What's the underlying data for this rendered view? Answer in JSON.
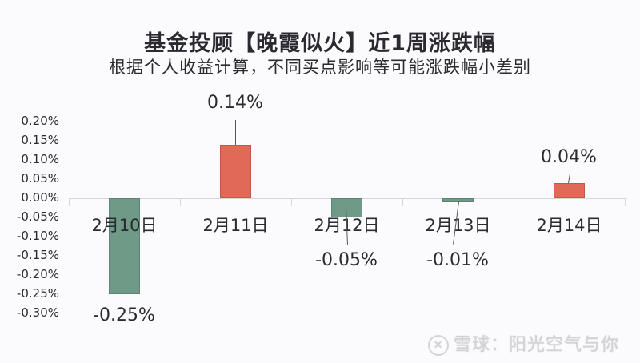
{
  "header": {
    "title": "基金投顾【晚霞似火】近1周涨跌幅",
    "subtitle": "根据个人收益计算，不同买点影响等可能涨跌幅小差别"
  },
  "watermark": {
    "icon": "snowball-logo-icon",
    "text": "雪球：阳光空气与你"
  },
  "colors": {
    "positive": "#e06a57",
    "negative": "#6e9a87"
  },
  "chart_data": {
    "type": "bar",
    "title": "基金投顾【晚霞似火】近1周涨跌幅",
    "subtitle": "根据个人收益计算，不同买点影响等可能涨跌幅小差别",
    "categories": [
      "2月10日",
      "2月11日",
      "2月12日",
      "2月13日",
      "2月14日"
    ],
    "values": [
      -0.25,
      0.14,
      -0.05,
      -0.01,
      0.04
    ],
    "value_labels": [
      "-0.25%",
      "0.14%",
      "-0.05%",
      "-0.01%",
      "0.04%"
    ],
    "unit": "%",
    "xlabel": "",
    "ylabel": "",
    "ylim": [
      -0.3,
      0.2
    ],
    "yticks": [
      "0.20%",
      "0.15%",
      "0.10%",
      "0.05%",
      "0.00%",
      "-0.05%",
      "-0.10%",
      "-0.15%",
      "-0.20%",
      "-0.25%",
      "-0.30%"
    ],
    "grid": false,
    "legend": null
  }
}
